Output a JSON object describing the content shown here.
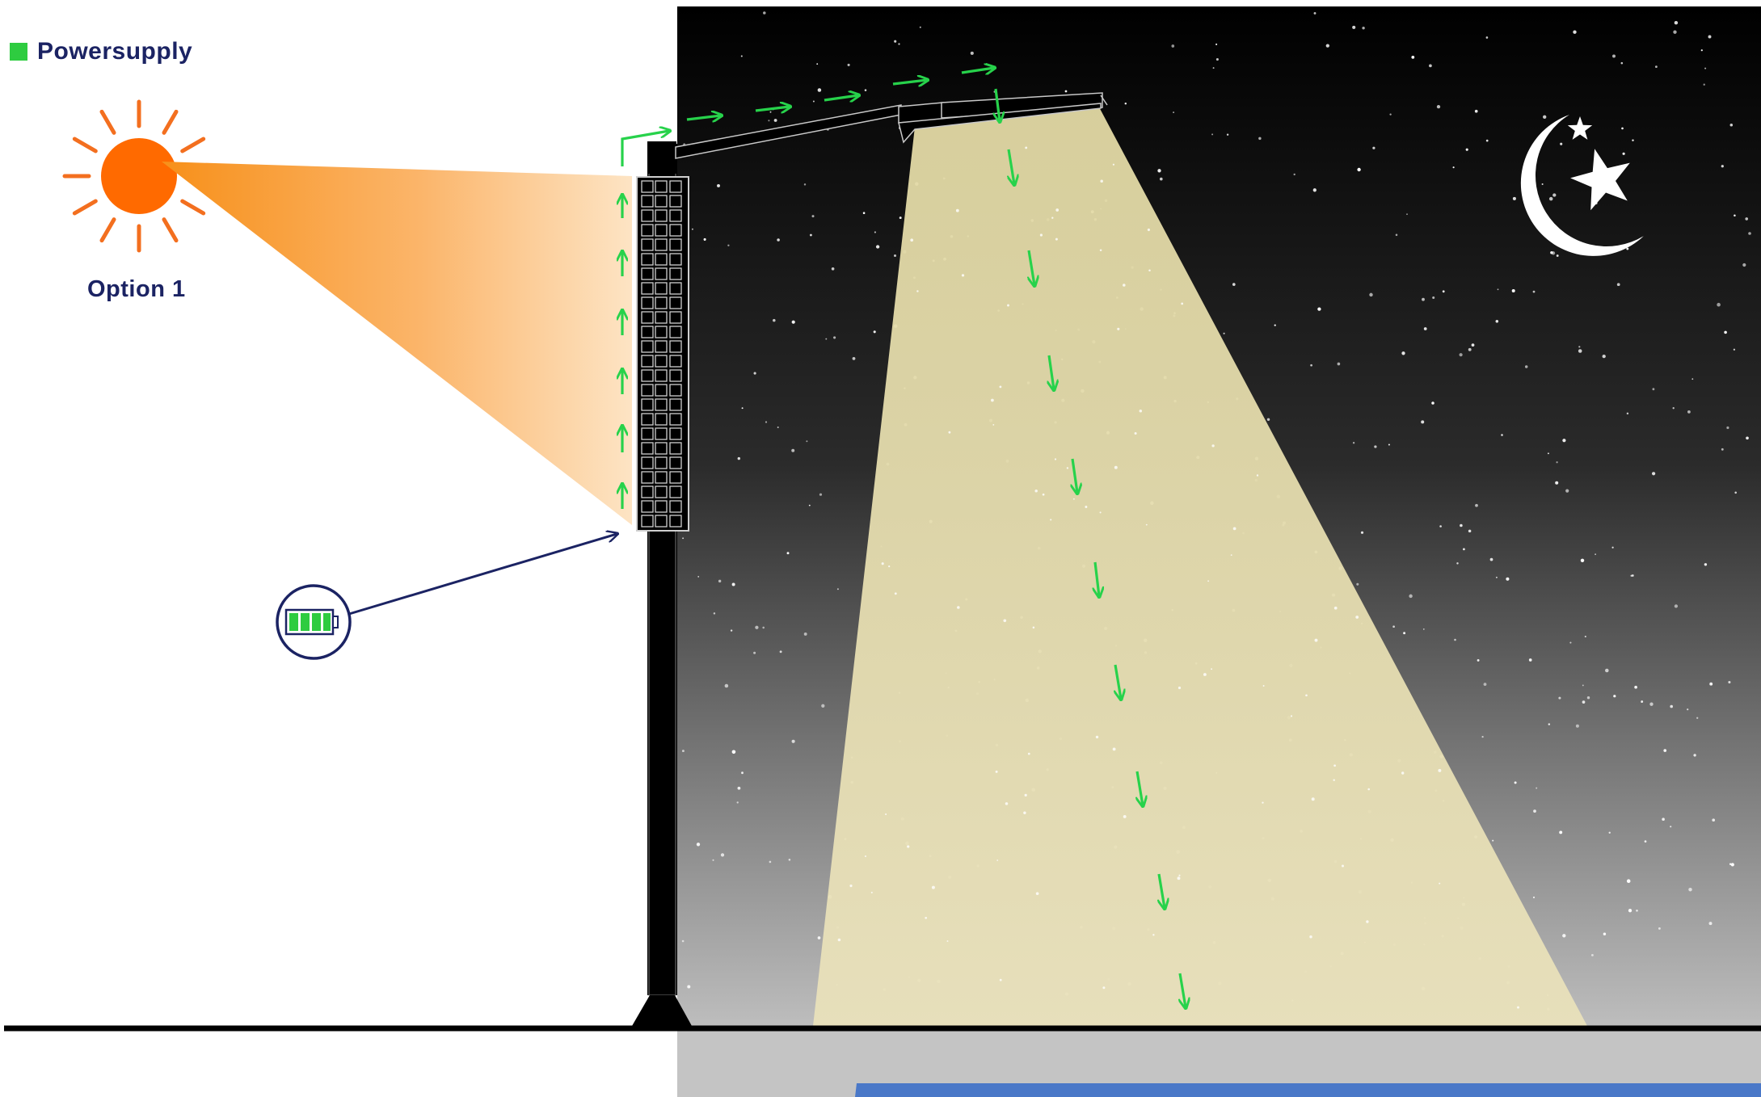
{
  "legend": {
    "label": "Powersupply",
    "swatch_color": "#2ecc40"
  },
  "sun": {
    "label": "Option 1",
    "color": "#ff6a00",
    "ray_color": "#f36f1f"
  },
  "icons": {
    "sun": "sun-icon",
    "moon": "crescent-moon-icon",
    "star": "star-icon",
    "battery": "battery-icon"
  },
  "colors": {
    "night_top": "#000000",
    "night_bottom": "#bdbdbd",
    "lamp_light": "#e6ddaa",
    "power_arrow": "#27d24b",
    "battery_pointer": "#1b2363",
    "pole": "#000000"
  }
}
